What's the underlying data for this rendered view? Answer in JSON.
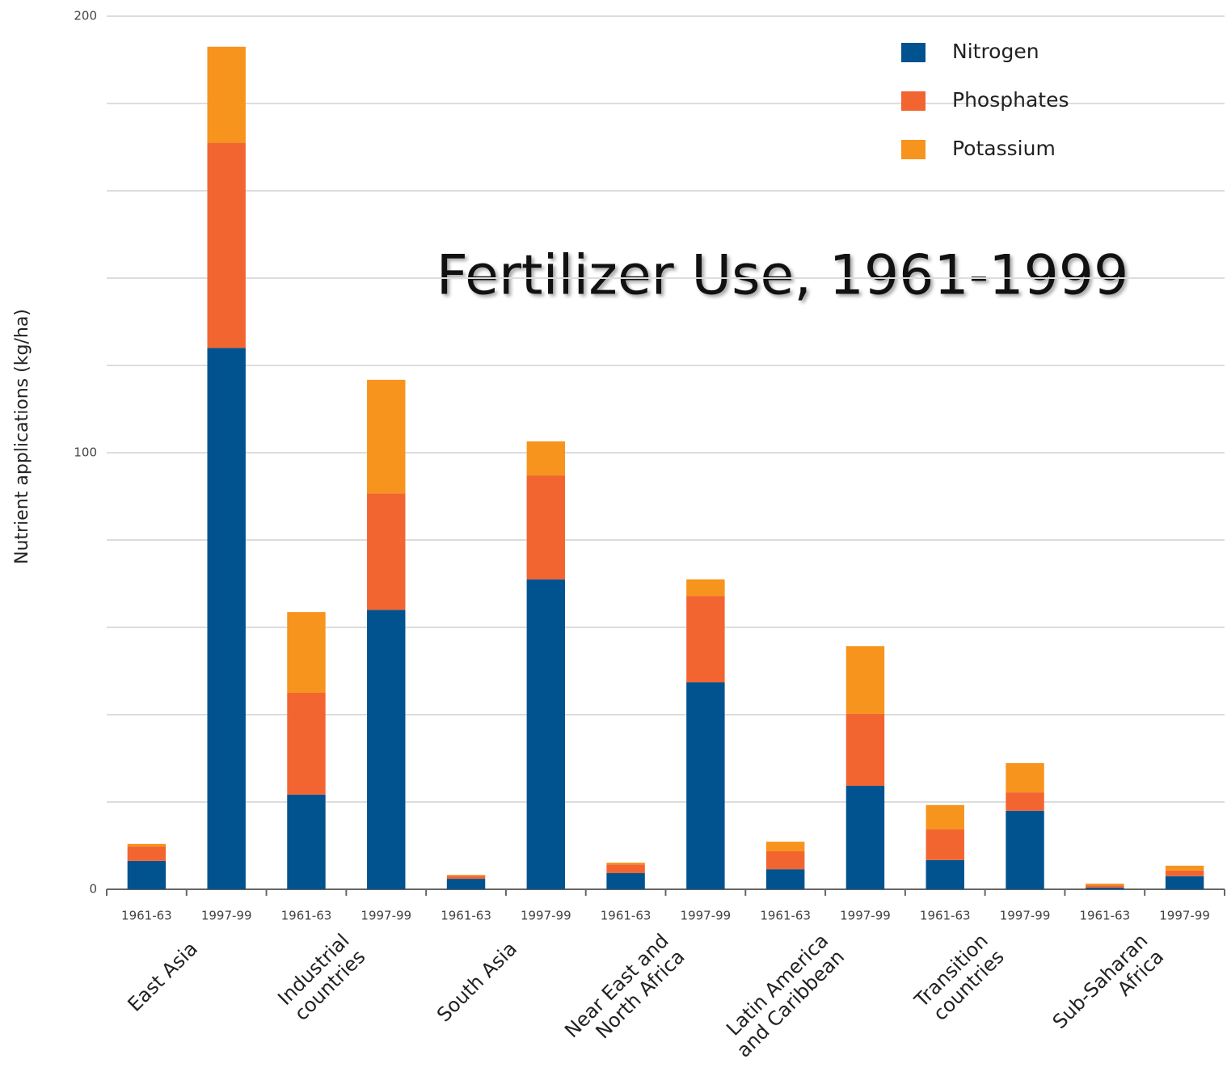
{
  "chart_data": {
    "type": "stacked_bar",
    "title": "Fertilizer Use, 1961-1999",
    "y_label": "Nutrient applications (kg/ha)",
    "categories": [
      "1961-63",
      "1997-99",
      "1961-63",
      "1997-99",
      "1961-63",
      "1997-99",
      "1961-63",
      "1997-99",
      "1961-63",
      "1997-99",
      "1961-63",
      "1997-99",
      "1961-63",
      "1997-99"
    ],
    "groups": [
      [
        "East Asia"
      ],
      [
        "Industrial",
        "countries"
      ],
      [
        "South Asia"
      ],
      [
        "Near East and",
        "North Africa"
      ],
      [
        "Latin America",
        "and Caribbean"
      ],
      [
        "Transition",
        "countries"
      ],
      [
        "Sub-Saharan",
        "Africa"
      ]
    ],
    "series": [
      {
        "name": "Nitrogen",
        "color": "#00538f",
        "values": [
          6.5,
          124,
          21.7,
          64,
          2.4,
          71,
          3.7,
          47.4,
          4.6,
          23.7,
          6.7,
          18,
          0.4,
          3
        ]
      },
      {
        "name": "Phosphates",
        "color": "#f26531",
        "values": [
          3.3,
          47,
          23.3,
          26.7,
          0.7,
          23.8,
          2,
          19.8,
          4.1,
          16.5,
          7,
          4.2,
          0.5,
          1.3
        ]
      },
      {
        "name": "Potassium",
        "color": "#f7941d",
        "values": [
          0.6,
          22,
          18.5,
          26,
          0.2,
          7.8,
          0.4,
          3.8,
          2.2,
          15.5,
          5.6,
          6.7,
          0.4,
          1.1
        ]
      }
    ],
    "ylim": [
      0,
      200
    ],
    "yticks": [
      0,
      100,
      200
    ],
    "minor_yticks": [
      20,
      40,
      60,
      80,
      120,
      140,
      160,
      180
    ],
    "grid": true,
    "legend": "top-right"
  }
}
